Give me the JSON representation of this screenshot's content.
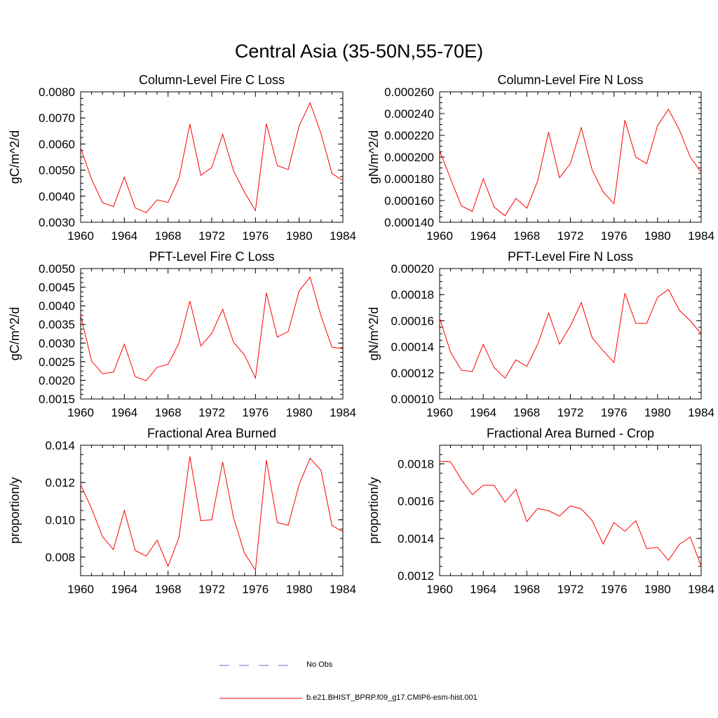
{
  "page_title": "Central Asia (35-50N,55-70E)",
  "colors": {
    "model_line": "#ff0000",
    "obs_line": "#6b6bc9",
    "axis": "#000000"
  },
  "legend": [
    {
      "label": "No Obs",
      "style": "dashed",
      "color": "#6b6bc9"
    },
    {
      "label": "b.e21.BHIST_BPRP.f09_g17.CMIP6-esm-hist.001",
      "style": "solid",
      "color": "#ff0000"
    }
  ],
  "chart_data": [
    {
      "type": "line",
      "title": "Column-Level Fire C Loss",
      "ylabel": "gC/m^2/d",
      "xlim": [
        1960,
        1984
      ],
      "ylim": [
        0.003,
        0.008
      ],
      "x_ticks": [
        "1960",
        "1964",
        "1968",
        "1972",
        "1976",
        "1980",
        "1984"
      ],
      "y_ticks": [
        "0.0030",
        "0.0040",
        "0.0050",
        "0.0060",
        "0.0070",
        "0.0080"
      ],
      "x": [
        1960,
        1961,
        1962,
        1963,
        1964,
        1965,
        1966,
        1967,
        1968,
        1969,
        1970,
        1971,
        1972,
        1973,
        1974,
        1975,
        1976,
        1977,
        1978,
        1979,
        1980,
        1981,
        1982,
        1983,
        1984
      ],
      "series": [
        {
          "values": [
            0.00585,
            0.00465,
            0.00375,
            0.0036,
            0.00473,
            0.00355,
            0.00337,
            0.00386,
            0.00376,
            0.00468,
            0.00676,
            0.0048,
            0.0051,
            0.00637,
            0.00497,
            0.00415,
            0.00345,
            0.00678,
            0.00517,
            0.00502,
            0.0067,
            0.00758,
            0.0064,
            0.00487,
            0.0046
          ]
        }
      ]
    },
    {
      "type": "line",
      "title": "Column-Level Fire N Loss",
      "ylabel": "gN/m^2/d",
      "xlim": [
        1960,
        1984
      ],
      "ylim": [
        0.00014,
        0.00026
      ],
      "x_ticks": [
        "1960",
        "1964",
        "1968",
        "1972",
        "1976",
        "1980",
        "1984"
      ],
      "y_ticks": [
        "0.000140",
        "0.000160",
        "0.000180",
        "0.000200",
        "0.000220",
        "0.000240",
        "0.000260"
      ],
      "x": [
        1960,
        1961,
        1962,
        1963,
        1964,
        1965,
        1966,
        1967,
        1968,
        1969,
        1970,
        1971,
        1972,
        1973,
        1974,
        1975,
        1976,
        1977,
        1978,
        1979,
        1980,
        1981,
        1982,
        1983,
        1984
      ],
      "series": [
        {
          "values": [
            0.000206,
            0.00018,
            0.000155,
            0.00015,
            0.00018,
            0.000154,
            0.000146,
            0.000162,
            0.000153,
            0.000178,
            0.000223,
            0.000181,
            0.000194,
            0.000227,
            0.000188,
            0.000168,
            0.000157,
            0.000234,
            0.0002,
            0.000194,
            0.000229,
            0.000244,
            0.000225,
            0.0002,
            0.000186
          ]
        }
      ]
    },
    {
      "type": "line",
      "title": "PFT-Level Fire C Loss",
      "ylabel": "gC/m^2/d",
      "xlim": [
        1960,
        1984
      ],
      "ylim": [
        0.0015,
        0.005
      ],
      "x_ticks": [
        "1960",
        "1964",
        "1968",
        "1972",
        "1976",
        "1980",
        "1984"
      ],
      "y_ticks": [
        "0.0015",
        "0.0020",
        "0.0025",
        "0.0030",
        "0.0035",
        "0.0040",
        "0.0045",
        "0.0050"
      ],
      "x": [
        1960,
        1961,
        1962,
        1963,
        1964,
        1965,
        1966,
        1967,
        1968,
        1969,
        1970,
        1971,
        1972,
        1973,
        1974,
        1975,
        1976,
        1977,
        1978,
        1979,
        1980,
        1981,
        1982,
        1983,
        1984
      ],
      "series": [
        {
          "values": [
            0.00375,
            0.00252,
            0.00218,
            0.00222,
            0.00297,
            0.0021,
            0.00199,
            0.00235,
            0.00243,
            0.003,
            0.00413,
            0.00292,
            0.00326,
            0.00391,
            0.00302,
            0.00268,
            0.00206,
            0.00435,
            0.00316,
            0.00331,
            0.0044,
            0.00477,
            0.00373,
            0.00289,
            0.00285
          ]
        }
      ]
    },
    {
      "type": "line",
      "title": "PFT-Level Fire N Loss",
      "ylabel": "gN/m^2/d",
      "xlim": [
        1960,
        1984
      ],
      "ylim": [
        0.0001,
        0.0002
      ],
      "x_ticks": [
        "1960",
        "1964",
        "1968",
        "1972",
        "1976",
        "1980",
        "1984"
      ],
      "y_ticks": [
        "0.00010",
        "0.00012",
        "0.00014",
        "0.00016",
        "0.00018",
        "0.00020"
      ],
      "x": [
        1960,
        1961,
        1962,
        1963,
        1964,
        1965,
        1966,
        1967,
        1968,
        1969,
        1970,
        1971,
        1972,
        1973,
        1974,
        1975,
        1976,
        1977,
        1978,
        1979,
        1980,
        1981,
        1982,
        1983,
        1984
      ],
      "series": [
        {
          "values": [
            0.000162,
            0.000136,
            0.000122,
            0.000121,
            0.000142,
            0.000124,
            0.000116,
            0.00013,
            0.000125,
            0.000142,
            0.000166,
            0.000142,
            0.000156,
            0.000174,
            0.000147,
            0.000137,
            0.000128,
            0.000181,
            0.000158,
            0.000158,
            0.000178,
            0.000184,
            0.000168,
            0.00016,
            0.00015
          ]
        }
      ]
    },
    {
      "type": "line",
      "title": "Fractional Area Burned",
      "ylabel": "proportion/y",
      "xlim": [
        1960,
        1984
      ],
      "ylim": [
        0.007,
        0.014
      ],
      "x_ticks": [
        "1960",
        "1964",
        "1968",
        "1972",
        "1976",
        "1980",
        "1984"
      ],
      "y_ticks": [
        "0.008",
        "0.010",
        "0.012",
        "0.014"
      ],
      "x": [
        1960,
        1961,
        1962,
        1963,
        1964,
        1965,
        1966,
        1967,
        1968,
        1969,
        1970,
        1971,
        1972,
        1973,
        1974,
        1975,
        1976,
        1977,
        1978,
        1979,
        1980,
        1981,
        1982,
        1983,
        1984
      ],
      "series": [
        {
          "values": [
            0.0119,
            0.0106,
            0.0091,
            0.0084,
            0.0105,
            0.00835,
            0.00805,
            0.0089,
            0.0075,
            0.00905,
            0.0134,
            0.00995,
            0.01,
            0.0131,
            0.0101,
            0.0082,
            0.0073,
            0.0132,
            0.00985,
            0.0097,
            0.0119,
            0.0133,
            0.01265,
            0.0097,
            0.00935
          ]
        }
      ]
    },
    {
      "type": "line",
      "title": "Fractional Area Burned - Crop",
      "ylabel": "proportion/y",
      "xlim": [
        1960,
        1984
      ],
      "ylim": [
        0.0012,
        0.0019
      ],
      "x_ticks": [
        "1960",
        "1964",
        "1968",
        "1972",
        "1976",
        "1980",
        "1984"
      ],
      "y_ticks": [
        "0.0012",
        "0.0014",
        "0.0016",
        "0.0018"
      ],
      "x": [
        1960,
        1961,
        1962,
        1963,
        1964,
        1965,
        1966,
        1967,
        1968,
        1969,
        1970,
        1971,
        1972,
        1973,
        1974,
        1975,
        1976,
        1977,
        1978,
        1979,
        1980,
        1981,
        1982,
        1983,
        1984
      ],
      "series": [
        {
          "values": [
            0.001813,
            0.001811,
            0.001715,
            0.001635,
            0.001685,
            0.001685,
            0.001595,
            0.001663,
            0.00149,
            0.001561,
            0.001548,
            0.00152,
            0.001575,
            0.001558,
            0.001495,
            0.00137,
            0.001485,
            0.001438,
            0.001495,
            0.001345,
            0.001352,
            0.001282,
            0.001368,
            0.001407,
            0.00125
          ]
        }
      ]
    }
  ]
}
